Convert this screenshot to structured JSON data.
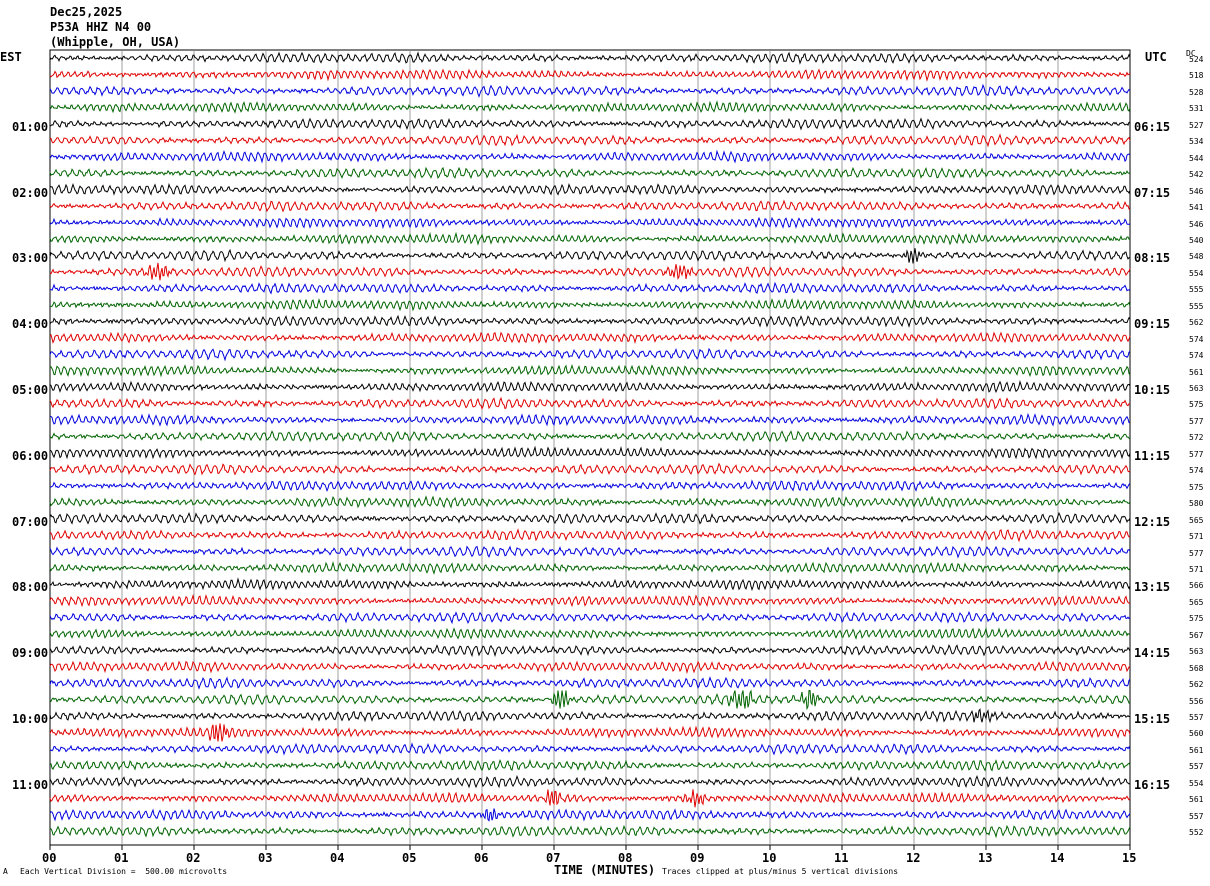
{
  "header": {
    "date": "Dec25,2025",
    "station": "P53A HHZ N4 00",
    "location": "(Whipple, OH, USA)"
  },
  "axes": {
    "left_tz": "EST",
    "right_tz": "UTC",
    "dc_label": "DC",
    "x_title": "TIME (MINUTES)",
    "scale_note": "Each Vertical Division =  500.00 microvolts",
    "clip_note": "Traces clipped at plus/minus 5 vertical divisions",
    "mini_mark": "A"
  },
  "chart_data": {
    "type": "line",
    "title": "P53A HHZ N4 00",
    "xlabel": "TIME (MINUTES)",
    "xlim": [
      0,
      15
    ],
    "x_ticks": [
      "00",
      "01",
      "02",
      "03",
      "04",
      "05",
      "06",
      "07",
      "08",
      "09",
      "10",
      "11",
      "12",
      "13",
      "14",
      "15"
    ],
    "left_hour_labels": [
      "01:00",
      "02:00",
      "03:00",
      "04:00",
      "05:00",
      "06:00",
      "07:00",
      "08:00",
      "09:00",
      "10:00",
      "11:00"
    ],
    "right_hour_labels": [
      "06:15",
      "07:15",
      "08:15",
      "09:15",
      "10:15",
      "11:15",
      "12:15",
      "13:15",
      "14:15",
      "15:15",
      "16:15"
    ],
    "row_minutes": 15,
    "trace_colors": [
      "#000000",
      "#e00000",
      "#0000e0",
      "#006400"
    ],
    "dc_offsets": [
      524,
      518,
      528,
      531,
      527,
      534,
      544,
      542,
      546,
      541,
      546,
      540,
      548,
      554,
      555,
      555,
      562,
      574,
      574,
      561,
      563,
      575,
      577,
      572,
      577,
      574,
      575,
      580,
      565,
      571,
      577,
      571,
      566,
      565,
      575,
      567,
      563,
      568,
      562,
      556,
      557,
      560,
      561,
      557,
      554,
      561,
      557,
      552
    ],
    "events": [
      {
        "row": 13,
        "minute": 1.5,
        "amp": 3.2
      },
      {
        "row": 12,
        "minute": 12.0,
        "amp": 2.2
      },
      {
        "row": 13,
        "minute": 8.75,
        "amp": 2.2
      },
      {
        "row": 39,
        "minute": 7.1,
        "amp": 3.0
      },
      {
        "row": 39,
        "minute": 9.6,
        "amp": 4.2
      },
      {
        "row": 39,
        "minute": 10.55,
        "amp": 2.8
      },
      {
        "row": 40,
        "minute": 12.95,
        "amp": 2.0
      },
      {
        "row": 41,
        "minute": 2.35,
        "amp": 3.0
      },
      {
        "row": 45,
        "minute": 7.0,
        "amp": 2.2
      },
      {
        "row": 45,
        "minute": 8.95,
        "amp": 2.0
      },
      {
        "row": 46,
        "minute": 6.15,
        "amp": 1.8
      }
    ]
  }
}
